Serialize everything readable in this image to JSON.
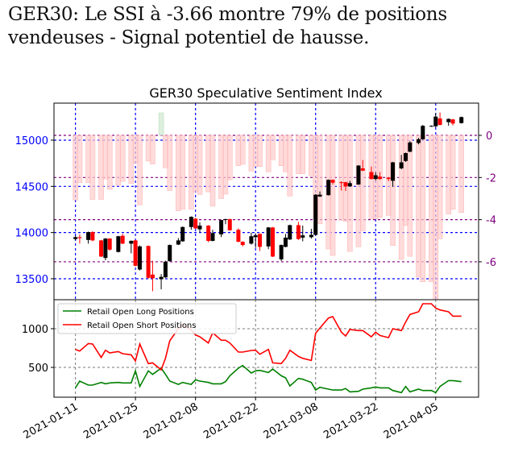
{
  "headline": "GER30: Le SSI à -3.66 montre 79% de positions vendeuses - Signal potentiel de hausse.",
  "chart_data": [
    {
      "type": "candlestick+bar",
      "title": "GER30 Speculative Sentiment Index",
      "xlim": [
        "2021-01-06",
        "2021-04-15"
      ],
      "x_ticks": [
        "2021-01-11",
        "2021-01-25",
        "2021-02-08",
        "2021-02-22",
        "2021-03-08",
        "2021-03-22",
        "2021-04-05"
      ],
      "y_left": {
        "ylim": [
          13273,
          15401
        ],
        "ticks": [
          13500,
          14000,
          14500,
          15000
        ],
        "color": "#0000ff"
      },
      "y_right": {
        "ylim": [
          -7.8,
          1.53
        ],
        "ticks": [
          0,
          -2,
          -4,
          -6
        ],
        "color": "#800080"
      },
      "grid": true,
      "colors": {
        "up": "#000000",
        "down": "#ff0000",
        "ssi_negative": "#ffcccc",
        "ssi_positive": "#cfe8cf"
      },
      "dates": [
        "2021-01-11",
        "2021-01-12",
        "2021-01-14",
        "2021-01-15",
        "2021-01-17",
        "2021-01-18",
        "2021-01-19",
        "2021-01-21",
        "2021-01-22",
        "2021-01-24",
        "2021-01-25",
        "2021-01-26",
        "2021-01-28",
        "2021-01-29",
        "2021-01-31",
        "2021-02-01",
        "2021-02-02",
        "2021-02-04",
        "2021-02-05",
        "2021-02-07",
        "2021-02-08",
        "2021-02-09",
        "2021-02-11",
        "2021-02-12",
        "2021-02-14",
        "2021-02-15",
        "2021-02-16",
        "2021-02-18",
        "2021-02-19",
        "2021-02-21",
        "2021-02-22",
        "2021-02-23",
        "2021-02-25",
        "2021-02-26",
        "2021-02-28",
        "2021-03-01",
        "2021-03-02",
        "2021-03-04",
        "2021-03-05",
        "2021-03-07",
        "2021-03-08",
        "2021-03-09",
        "2021-03-11",
        "2021-03-12",
        "2021-03-14",
        "2021-03-15",
        "2021-03-16",
        "2021-03-18",
        "2021-03-19",
        "2021-03-21",
        "2021-03-22",
        "2021-03-23",
        "2021-03-25",
        "2021-03-26",
        "2021-03-28",
        "2021-03-29",
        "2021-03-30",
        "2021-04-01",
        "2021-04-02",
        "2021-04-04",
        "2021-04-05",
        "2021-04-06",
        "2021-04-08",
        "2021-04-09",
        "2021-04-11"
      ],
      "open": [
        13930,
        13950,
        13920,
        14005,
        13915,
        13725,
        13935,
        13790,
        13965,
        13880,
        13915,
        13600,
        13855,
        13545,
        13495,
        13515,
        13690,
        13870,
        13905,
        14060,
        14150,
        14035,
        14075,
        13910,
        13980,
        14140,
        14145,
        14030,
        13900,
        13880,
        13950,
        13985,
        13850,
        14055,
        13710,
        13845,
        13925,
        14080,
        13945,
        13950,
        13975,
        14390,
        14405,
        14570,
        14545,
        14545,
        14500,
        14520,
        14695,
        14655,
        14580,
        14605,
        14595,
        14560,
        14695,
        14775,
        14875,
        14970,
        15010,
        15150,
        15150,
        15235,
        15195,
        15225,
        15185
      ],
      "high": [
        13965,
        13980,
        14010,
        14015,
        13920,
        13940,
        13940,
        13965,
        13985,
        13915,
        13920,
        13860,
        13860,
        13695,
        13550,
        13695,
        13870,
        13940,
        14065,
        14175,
        14160,
        14110,
        14080,
        14030,
        14140,
        14150,
        14150,
        14045,
        13905,
        14000,
        13990,
        13990,
        14060,
        14060,
        13870,
        13985,
        14085,
        14115,
        14075,
        14040,
        14415,
        14445,
        14575,
        14575,
        14555,
        14550,
        14560,
        14730,
        14785,
        14715,
        14650,
        14655,
        14600,
        14765,
        14840,
        14865,
        14990,
        15025,
        15165,
        15160,
        15290,
        15300,
        15235,
        15230,
        15255
      ],
      "low": [
        13915,
        13880,
        13880,
        13905,
        13735,
        13700,
        13805,
        13785,
        13875,
        13775,
        13635,
        13590,
        13500,
        13365,
        13385,
        13510,
        13685,
        13865,
        13900,
        14030,
        14040,
        14000,
        13895,
        13905,
        13950,
        14090,
        14020,
        13895,
        13850,
        13870,
        13835,
        13800,
        13820,
        13735,
        13690,
        13840,
        13920,
        13920,
        13905,
        13935,
        13970,
        14385,
        14400,
        14520,
        14455,
        14450,
        14495,
        14515,
        14665,
        14575,
        14565,
        14570,
        14555,
        14495,
        14685,
        14765,
        14870,
        14955,
        15005,
        15145,
        15140,
        15160,
        15155,
        15160,
        15180
      ],
      "close": [
        13950,
        13940,
        14005,
        13915,
        13740,
        13935,
        13815,
        13960,
        13880,
        13910,
        13640,
        13850,
        13510,
        13505,
        13520,
        13685,
        13865,
        13915,
        14060,
        14170,
        14045,
        14075,
        13910,
        13995,
        14135,
        14145,
        14025,
        13900,
        13865,
        13960,
        13970,
        13845,
        14055,
        13740,
        13865,
        13945,
        14080,
        13930,
        13970,
        13975,
        14410,
        14410,
        14570,
        14540,
        14540,
        14500,
        14535,
        14725,
        14670,
        14580,
        14620,
        14580,
        14580,
        14760,
        14760,
        14860,
        14975,
        15010,
        15155,
        15155,
        15255,
        15165,
        15230,
        15180,
        15250
      ],
      "ssi": [
        -3.07,
        -2.24,
        -2.24,
        -3.04,
        -3.04,
        -2.07,
        -2.56,
        -2.37,
        -2.18,
        -2.28,
        -1.32,
        -3.3,
        -1.22,
        -1.36,
        1.07,
        -1.54,
        -2.62,
        -3.58,
        -3.5,
        -3.5,
        -2.68,
        -2.81,
        -2.68,
        -3.36,
        -3.0,
        -2.79,
        -2.11,
        -1.44,
        -1.37,
        -1.69,
        -1.48,
        -1.48,
        -1.73,
        -1.16,
        -1.44,
        -1.73,
        -2.88,
        -1.82,
        -1.82,
        -1.92,
        -3.96,
        -4.19,
        -5.39,
        -5.7,
        -4.02,
        -4.08,
        -5.51,
        -5.29,
        -4.53,
        -3.96,
        -3.96,
        -3.89,
        -3.8,
        -5.23,
        -5.89,
        -4.27,
        -5.74,
        -6.73,
        -6.95,
        -6.95,
        -8.0,
        -4.91,
        -3.73,
        -3.51,
        -3.66
      ]
    },
    {
      "type": "line",
      "x_ticks": [
        "2021-01-11",
        "2021-01-25",
        "2021-02-08",
        "2021-02-22",
        "2021-03-08",
        "2021-03-22",
        "2021-04-05"
      ],
      "ylim": [
        115,
        1375
      ],
      "y_ticks": [
        500,
        1000
      ],
      "grid": true,
      "legend": "top-left",
      "series": [
        {
          "name": "Retail Open Long Positions",
          "color": "#008000",
          "values": [
            236,
            323,
            271,
            271,
            306,
            288,
            299,
            306,
            299,
            299,
            455,
            253,
            455,
            410,
            490,
            410,
            323,
            281,
            306,
            281,
            340,
            323,
            306,
            288,
            288,
            316,
            392,
            490,
            524,
            427,
            455,
            462,
            434,
            479,
            392,
            365,
            260,
            358,
            347,
            306,
            208,
            243,
            219,
            208,
            208,
            226,
            184,
            191,
            219,
            236,
            247,
            236,
            236,
            201,
            174,
            253,
            184,
            219,
            201,
            201,
            174,
            253,
            330,
            330,
            316
          ]
        },
        {
          "name": "Retail Open Short Positions",
          "color": "#ff0000",
          "values": [
            733,
            712,
            809,
            802,
            628,
            722,
            688,
            705,
            677,
            663,
            583,
            802,
            549,
            559,
            469,
            618,
            844,
            1000,
            1052,
            983,
            920,
            896,
            816,
            948,
            851,
            851,
            816,
            698,
            698,
            719,
            722,
            670,
            733,
            559,
            549,
            618,
            722,
            642,
            618,
            590,
            941,
            1007,
            1139,
            1156,
            955,
            906,
            990,
            976,
            976,
            896,
            955,
            913,
            885,
            1000,
            976,
            1087,
            1184,
            1219,
            1323,
            1323,
            1267,
            1243,
            1219,
            1163,
            1163
          ]
        }
      ]
    }
  ]
}
